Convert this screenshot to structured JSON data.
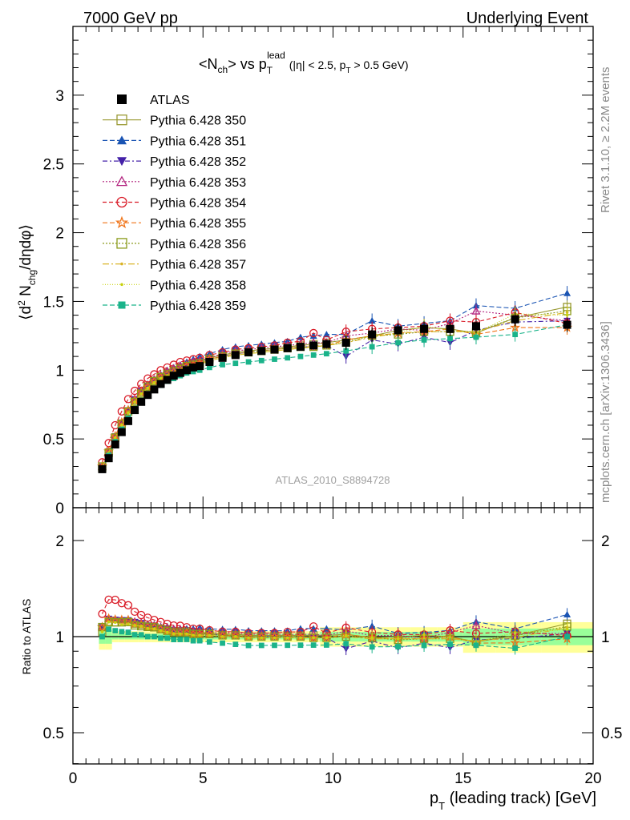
{
  "header": {
    "left": "7000 GeV pp",
    "right": "Underlying Event"
  },
  "side_text": {
    "rivet": "Rivet 3.1.10, ≥ 2.2M events",
    "mcplots": "mcplots.cern.ch [arXiv:1306.3436]"
  },
  "plot_title": {
    "main": "<N",
    "sub1": "ch",
    "mid": "> vs p",
    "sub2": "T",
    "sup": "lead",
    "cuts": "(|η| < 2.5, p",
    "cuts_sub": "T",
    "cuts_end": " > 0.5 GeV)"
  },
  "watermark": "ATLAS_2010_S8894728",
  "ylabel_main": "⟨d² Nₑₕᵍ/dηdφ⟩",
  "ylabel_ratio": "Ratio to ATLAS",
  "xlabel": "p",
  "xlabel_sub": "T",
  "xlabel_end": " (leading track) [GeV]",
  "chart_data": {
    "type": "scatter",
    "x": [
      1.125,
      1.375,
      1.625,
      1.875,
      2.125,
      2.375,
      2.625,
      2.875,
      3.125,
      3.375,
      3.625,
      3.875,
      4.125,
      4.375,
      4.625,
      4.875,
      5.25,
      5.75,
      6.25,
      6.75,
      7.25,
      7.75,
      8.25,
      8.75,
      9.25,
      9.75,
      10.5,
      11.5,
      12.5,
      13.5,
      14.5,
      15.5,
      17.0,
      19.0
    ],
    "xlim": [
      0,
      20
    ],
    "ylim": [
      0,
      3.5
    ],
    "ratio_ylim": [
      0.35,
      2.3
    ],
    "x_ticks": [
      0,
      5,
      10,
      15,
      20
    ],
    "y_ticks": [
      0,
      0.5,
      1,
      1.5,
      2,
      2.5,
      3
    ],
    "ratio_ticks": [
      0.5,
      1,
      2
    ],
    "legend_position": "top-left",
    "series": [
      {
        "name": "ATLAS",
        "color": "#000000",
        "marker": "square-filled",
        "dash": "none",
        "values": [
          0.28,
          0.36,
          0.46,
          0.55,
          0.63,
          0.71,
          0.77,
          0.82,
          0.86,
          0.9,
          0.93,
          0.96,
          0.98,
          1.0,
          1.02,
          1.03,
          1.06,
          1.09,
          1.11,
          1.13,
          1.14,
          1.15,
          1.16,
          1.17,
          1.18,
          1.19,
          1.2,
          1.26,
          1.29,
          1.3,
          1.3,
          1.32,
          1.37,
          1.33
        ]
      },
      {
        "name": "Pythia 6.428 350",
        "color": "#999933",
        "marker": "square-open",
        "dash": "none",
        "values": [
          0.29,
          0.4,
          0.51,
          0.61,
          0.7,
          0.78,
          0.84,
          0.88,
          0.92,
          0.95,
          0.98,
          1.0,
          1.02,
          1.04,
          1.05,
          1.06,
          1.09,
          1.11,
          1.13,
          1.14,
          1.15,
          1.16,
          1.17,
          1.18,
          1.19,
          1.2,
          1.22,
          1.25,
          1.29,
          1.31,
          1.3,
          1.27,
          1.38,
          1.46
        ]
      },
      {
        "name": "Pythia 6.428 351",
        "color": "#1a54b3",
        "marker": "triangle-up-filled",
        "dash": "6,3",
        "values": [
          0.3,
          0.41,
          0.52,
          0.62,
          0.71,
          0.79,
          0.85,
          0.9,
          0.94,
          0.97,
          1.0,
          1.02,
          1.04,
          1.06,
          1.08,
          1.1,
          1.12,
          1.15,
          1.17,
          1.18,
          1.19,
          1.2,
          1.21,
          1.24,
          1.25,
          1.26,
          1.26,
          1.36,
          1.32,
          1.34,
          1.36,
          1.47,
          1.45,
          1.56
        ]
      },
      {
        "name": "Pythia 6.428 352",
        "color": "#4421a8",
        "marker": "triangle-down-filled",
        "dash": "6,3,2,3",
        "values": [
          0.3,
          0.41,
          0.52,
          0.62,
          0.71,
          0.79,
          0.85,
          0.89,
          0.93,
          0.96,
          0.98,
          1.0,
          1.02,
          1.03,
          1.05,
          1.06,
          1.08,
          1.1,
          1.12,
          1.13,
          1.14,
          1.15,
          1.16,
          1.17,
          1.17,
          1.18,
          1.1,
          1.22,
          1.19,
          1.24,
          1.2,
          1.29,
          1.35,
          1.36
        ]
      },
      {
        "name": "Pythia 6.428 353",
        "color": "#b3247f",
        "marker": "triangle-up-open",
        "dash": "2,2",
        "values": [
          0.3,
          0.41,
          0.52,
          0.62,
          0.71,
          0.79,
          0.85,
          0.89,
          0.93,
          0.96,
          0.99,
          1.01,
          1.03,
          1.04,
          1.06,
          1.07,
          1.09,
          1.12,
          1.14,
          1.15,
          1.16,
          1.17,
          1.18,
          1.19,
          1.2,
          1.2,
          1.25,
          1.27,
          1.3,
          1.29,
          1.34,
          1.43,
          1.4,
          1.36
        ]
      },
      {
        "name": "Pythia 6.428 354",
        "color": "#d91a26",
        "marker": "circle-open",
        "dash": "5,3",
        "values": [
          0.33,
          0.47,
          0.6,
          0.7,
          0.79,
          0.85,
          0.9,
          0.94,
          0.97,
          1.0,
          1.02,
          1.04,
          1.06,
          1.07,
          1.08,
          1.09,
          1.11,
          1.13,
          1.15,
          1.16,
          1.17,
          1.18,
          1.2,
          1.21,
          1.27,
          1.22,
          1.28,
          1.3,
          1.31,
          1.32,
          1.36,
          1.35,
          1.42,
          1.34
        ]
      },
      {
        "name": "Pythia 6.428 355",
        "color": "#f07317",
        "marker": "star-open",
        "dash": "6,3",
        "values": [
          0.3,
          0.41,
          0.52,
          0.62,
          0.71,
          0.78,
          0.84,
          0.88,
          0.92,
          0.95,
          0.97,
          0.99,
          1.01,
          1.03,
          1.04,
          1.05,
          1.08,
          1.1,
          1.12,
          1.13,
          1.14,
          1.15,
          1.16,
          1.17,
          1.17,
          1.18,
          1.22,
          1.25,
          1.27,
          1.28,
          1.3,
          1.26,
          1.31,
          1.31
        ]
      },
      {
        "name": "Pythia 6.428 356",
        "color": "#8a9a1a",
        "marker": "square-open",
        "dash": "2,2",
        "values": [
          0.3,
          0.4,
          0.51,
          0.61,
          0.7,
          0.77,
          0.83,
          0.88,
          0.92,
          0.95,
          0.97,
          0.99,
          1.01,
          1.03,
          1.04,
          1.05,
          1.08,
          1.1,
          1.12,
          1.13,
          1.14,
          1.15,
          1.16,
          1.17,
          1.17,
          1.18,
          1.2,
          1.25,
          1.26,
          1.28,
          1.28,
          1.28,
          1.38,
          1.43
        ]
      },
      {
        "name": "Pythia 6.428 357",
        "color": "#d9b326",
        "marker": "dot",
        "dash": "8,3,2,3",
        "values": [
          0.29,
          0.4,
          0.51,
          0.6,
          0.69,
          0.77,
          0.83,
          0.87,
          0.91,
          0.94,
          0.96,
          0.98,
          1.0,
          1.02,
          1.03,
          1.04,
          1.07,
          1.09,
          1.11,
          1.12,
          1.13,
          1.14,
          1.15,
          1.16,
          1.17,
          1.18,
          1.2,
          1.24,
          1.27,
          1.28,
          1.28,
          1.28,
          1.36,
          1.42
        ]
      },
      {
        "name": "Pythia 6.428 358",
        "color": "#c8d20f",
        "marker": "dot",
        "dash": "1,2",
        "values": [
          0.29,
          0.4,
          0.51,
          0.6,
          0.69,
          0.77,
          0.83,
          0.87,
          0.91,
          0.94,
          0.96,
          0.98,
          1.0,
          1.02,
          1.03,
          1.04,
          1.07,
          1.09,
          1.11,
          1.12,
          1.13,
          1.14,
          1.15,
          1.16,
          1.17,
          1.18,
          1.21,
          1.25,
          1.27,
          1.32,
          1.29,
          1.27,
          1.41,
          1.4
        ]
      },
      {
        "name": "Pythia 6.428 359",
        "color": "#1ab38a",
        "marker": "square-small-filled",
        "dash": "6,3",
        "values": [
          0.28,
          0.38,
          0.48,
          0.57,
          0.65,
          0.72,
          0.78,
          0.82,
          0.86,
          0.89,
          0.92,
          0.94,
          0.96,
          0.98,
          0.99,
          1.0,
          1.02,
          1.04,
          1.05,
          1.06,
          1.07,
          1.08,
          1.09,
          1.1,
          1.11,
          1.12,
          1.14,
          1.17,
          1.2,
          1.22,
          1.23,
          1.24,
          1.26,
          1.33
        ]
      }
    ]
  }
}
